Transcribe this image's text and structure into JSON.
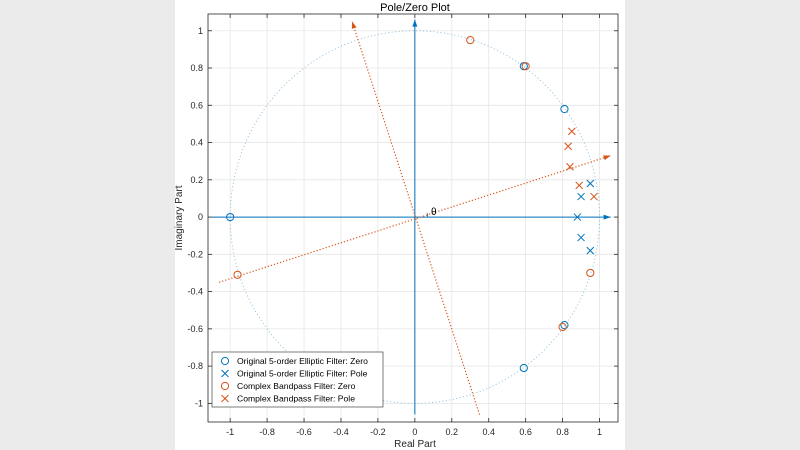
{
  "chart_data": {
    "type": "scatter",
    "title": "Pole/Zero Plot",
    "xlabel": "Real Part",
    "ylabel": "Imaginary Part",
    "xlim": [
      -1.12,
      1.1
    ],
    "ylim": [
      -1.1,
      1.09
    ],
    "grid": true,
    "legend_position": "bottom-left",
    "xticks": [
      -1,
      -0.8,
      -0.6,
      -0.4,
      -0.2,
      0,
      0.2,
      0.4,
      0.6,
      0.8,
      1
    ],
    "xtick_labels": [
      "-1",
      "-0.8",
      "-0.6",
      "-0.4",
      "-0.2",
      "0",
      "0.2",
      "0.4",
      "0.6",
      "0.8",
      "1"
    ],
    "yticks": [
      -1,
      -0.8,
      -0.6,
      -0.4,
      -0.2,
      0,
      0.2,
      0.4,
      0.6,
      0.8,
      1
    ],
    "ytick_labels": [
      "-1",
      "-0.8",
      "-0.6",
      "-0.4",
      "-0.2",
      "0",
      "0.2",
      "0.4",
      "0.6",
      "0.8",
      "1"
    ],
    "unit_circle": true,
    "angle_label": "θ",
    "series": [
      {
        "name": "Original 5-order Elliptic Filter: Zero",
        "marker": "o",
        "color": "#0072BD",
        "points": [
          [
            -1,
            0
          ],
          [
            0.59,
            0.81
          ],
          [
            0.81,
            0.58
          ],
          [
            0.81,
            -0.58
          ],
          [
            0.59,
            -0.81
          ]
        ]
      },
      {
        "name": "Original 5-order Elliptic Filter: Pole",
        "marker": "x",
        "color": "#0072BD",
        "points": [
          [
            0.95,
            0.18
          ],
          [
            0.9,
            0.11
          ],
          [
            0.88,
            0
          ],
          [
            0.9,
            -0.11
          ],
          [
            0.95,
            -0.18
          ]
        ]
      },
      {
        "name": "Complex Bandpass Filter: Zero",
        "marker": "o",
        "color": "#D95319",
        "points": [
          [
            0.3,
            0.95
          ],
          [
            0.6,
            0.81
          ],
          [
            -0.96,
            -0.31
          ],
          [
            0.95,
            -0.3
          ],
          [
            0.8,
            -0.59
          ]
        ]
      },
      {
        "name": "Complex Bandpass Filter: Pole",
        "marker": "x",
        "color": "#D95319",
        "points": [
          [
            0.85,
            0.46
          ],
          [
            0.83,
            0.38
          ],
          [
            0.84,
            0.27
          ],
          [
            0.89,
            0.17
          ],
          [
            0.97,
            0.11
          ]
        ]
      }
    ],
    "arrows": [
      {
        "from": [
          -1.1,
          0
        ],
        "to": [
          1.06,
          0
        ],
        "color": "#0072BD",
        "style": "solid"
      },
      {
        "from": [
          0,
          -1.06
        ],
        "to": [
          0,
          1.06
        ],
        "color": "#0072BD",
        "style": "solid"
      },
      {
        "from": [
          -1.06,
          -0.35
        ],
        "to": [
          1.06,
          0.33
        ],
        "color": "#D95319",
        "style": "dotted"
      },
      {
        "from": [
          0.35,
          -1.06
        ],
        "to": [
          -0.34,
          1.05
        ],
        "color": "#D95319",
        "style": "dotted"
      }
    ]
  }
}
